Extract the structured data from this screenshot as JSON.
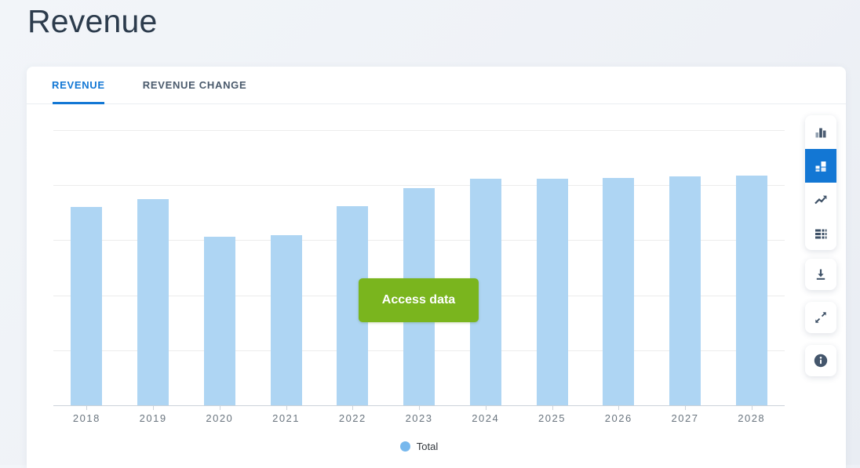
{
  "page": {
    "title": "Revenue"
  },
  "tabs": [
    {
      "label": "REVENUE",
      "active": true
    },
    {
      "label": "REVENUE CHANGE",
      "active": false
    }
  ],
  "chart_data": {
    "type": "bar",
    "title": "Revenue",
    "categories": [
      "2018",
      "2019",
      "2020",
      "2021",
      "2022",
      "2023",
      "2024",
      "2025",
      "2026",
      "2027",
      "2028"
    ],
    "series": [
      {
        "name": "Total",
        "values_pct_of_plot_height": [
          72.0,
          74.8,
          61.2,
          61.8,
          72.5,
          78.8,
          82.2,
          82.4,
          82.7,
          83.3,
          83.6
        ]
      }
    ],
    "xlabel": "",
    "ylabel": "",
    "y_axis": {
      "labels_visible": false,
      "gridline_intervals": 5
    },
    "grid": "horizontal",
    "legend_position": "bottom-center",
    "bar_color": "#aed5f3",
    "note": "y-axis values hidden behind Access data paywall overlay"
  },
  "legend": {
    "label": "Total",
    "dot_color": "#77b8ed"
  },
  "access_button": {
    "label": "Access data",
    "color": "#7ab51e"
  },
  "toolbar": {
    "chart_types": [
      {
        "name": "column-chart",
        "selected": false
      },
      {
        "name": "stacked-column-chart",
        "selected": true
      },
      {
        "name": "line-chart",
        "selected": false
      },
      {
        "name": "table-view",
        "selected": false
      }
    ],
    "actions": [
      {
        "name": "download"
      },
      {
        "name": "fullscreen"
      },
      {
        "name": "info"
      }
    ],
    "selected_color": "#1377d4"
  },
  "colors": {
    "accent_blue": "#1277d4",
    "bar_fill": "#aed5f3",
    "legend_dot": "#77b8ed",
    "button_green": "#7ab51e",
    "title_text": "#2c3b4c",
    "icon_slate": "#3e5167",
    "background": "#eef1f6"
  }
}
